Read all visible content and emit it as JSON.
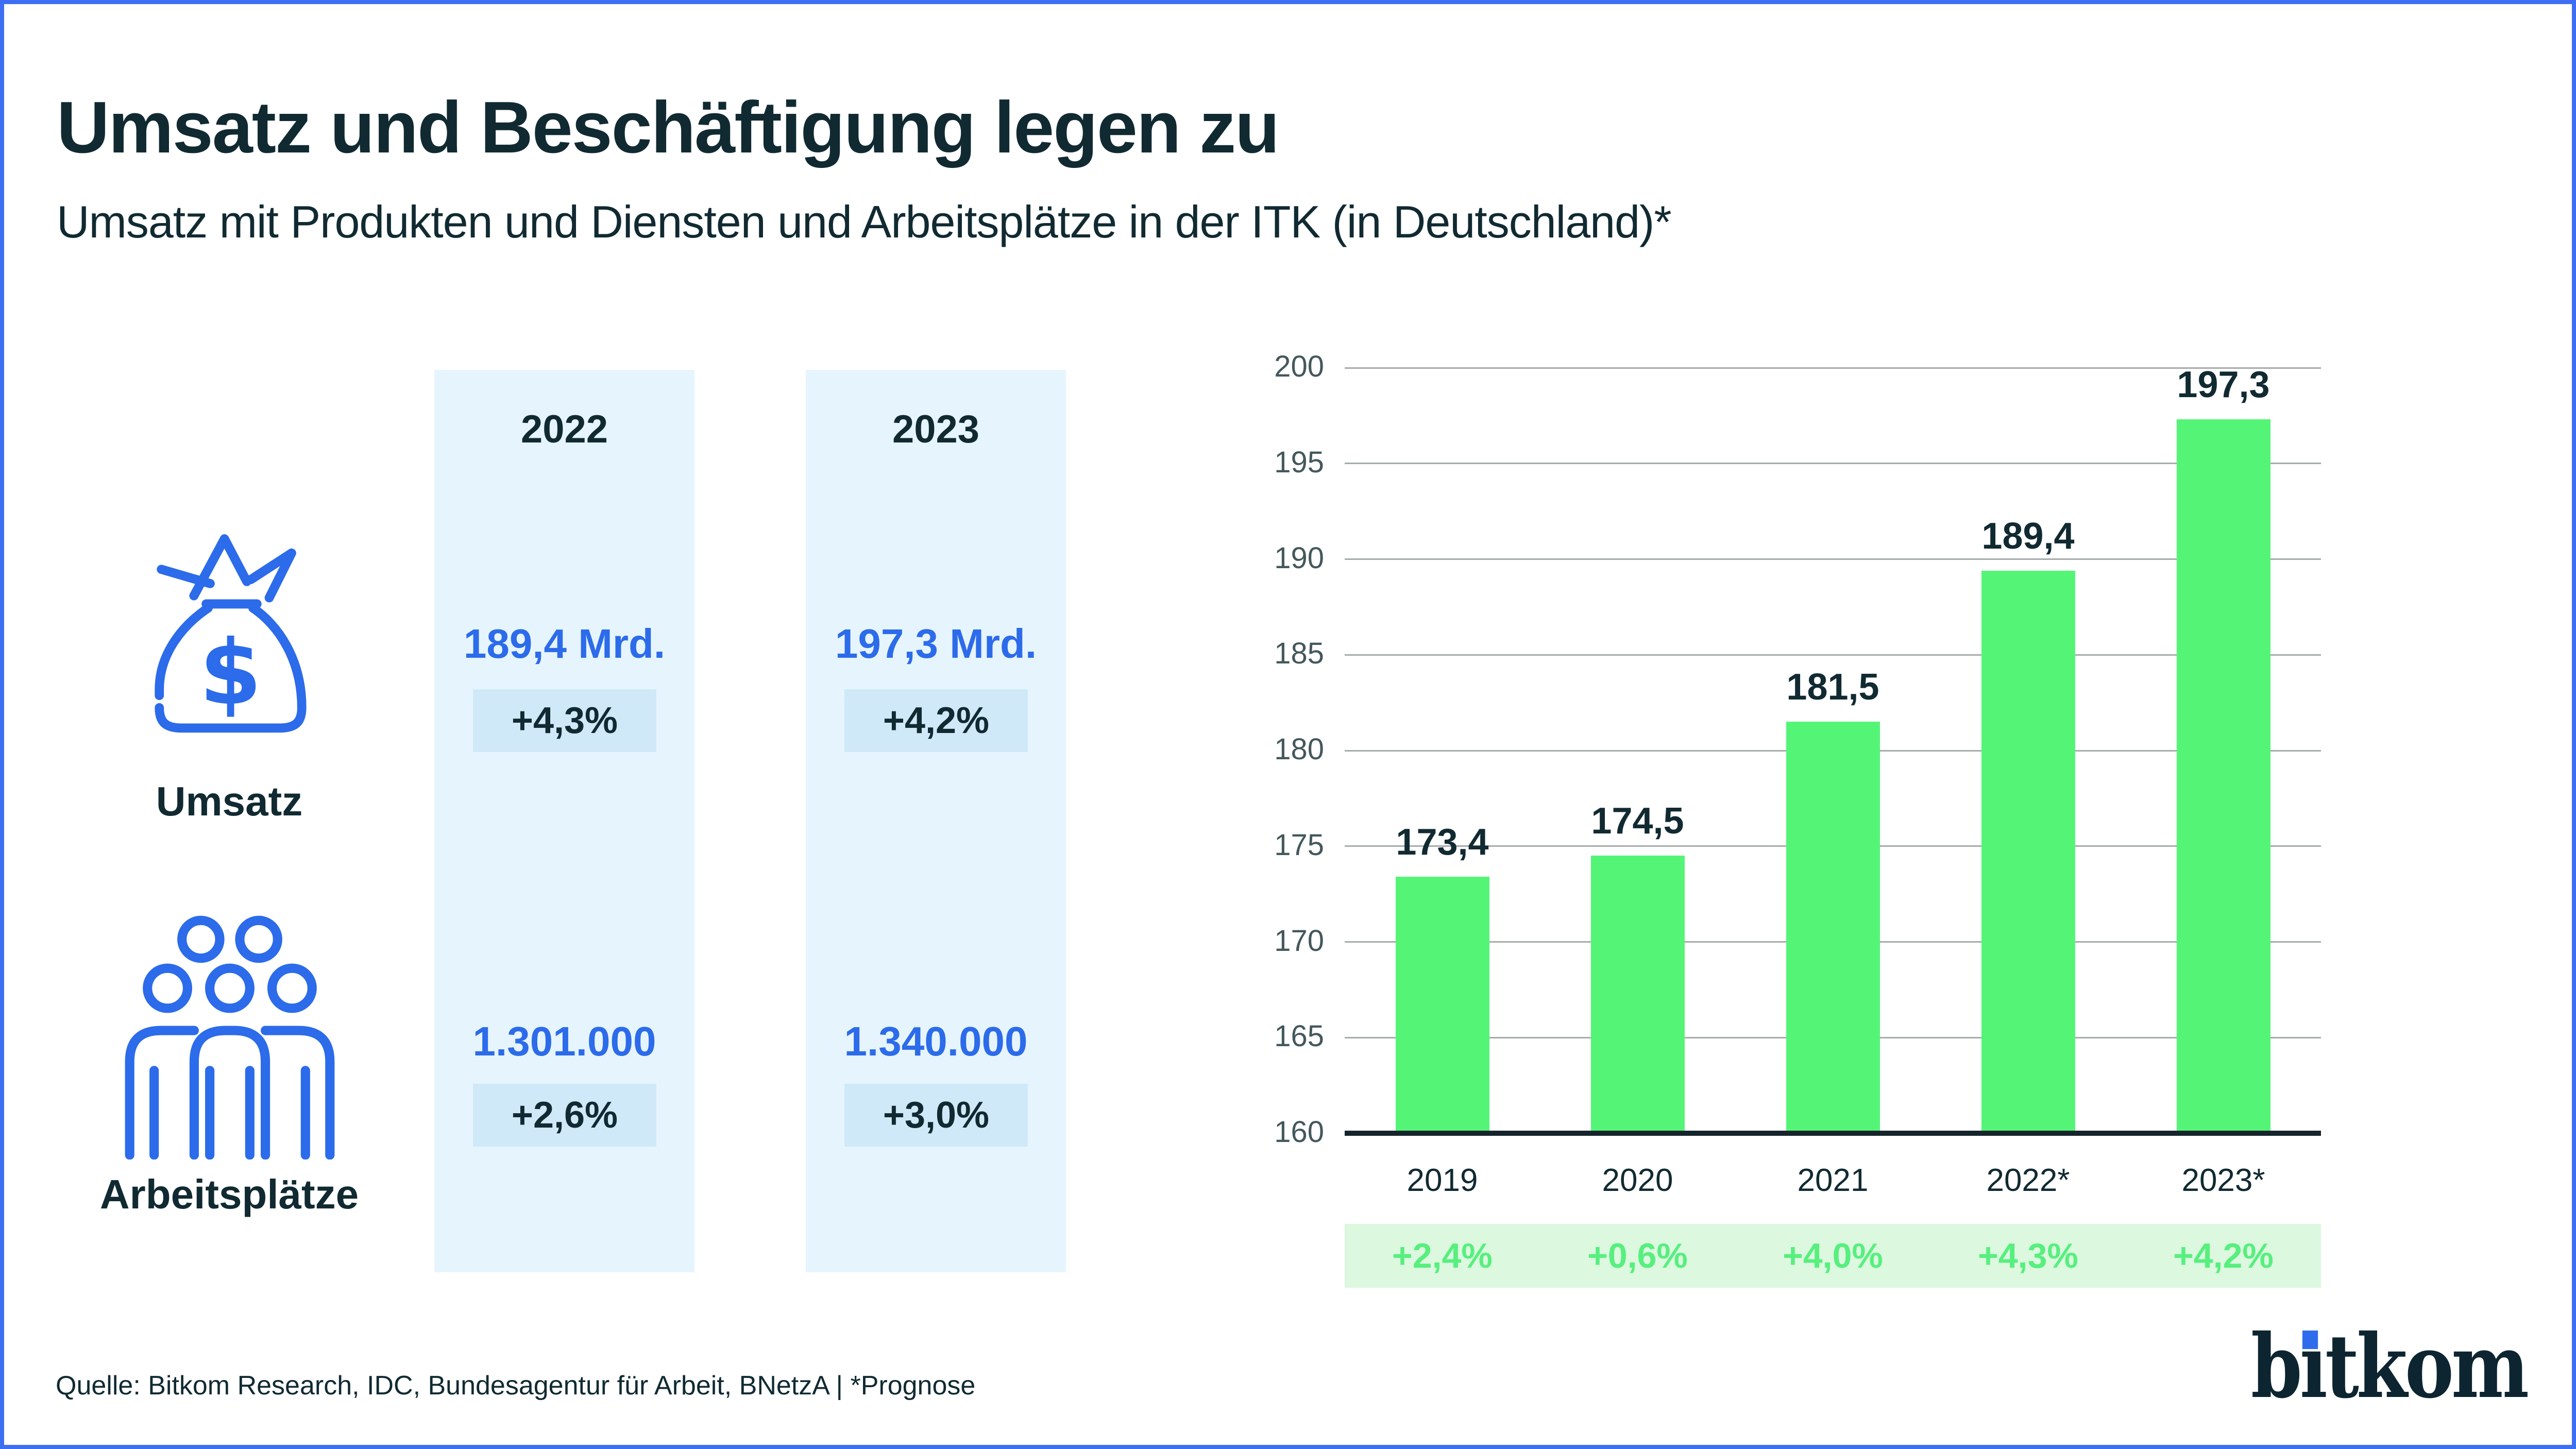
{
  "header": {
    "title": "Umsatz und Beschäftigung legen zu",
    "subtitle": "Umsatz mit Produkten und Diensten und Arbeitsplätze in der ITK (in Deutschland)*"
  },
  "comparison": {
    "columns": [
      {
        "year": "2022"
      },
      {
        "year": "2023"
      }
    ],
    "rows": [
      {
        "label": "Umsatz",
        "icon": "money-bag-icon",
        "values": [
          "189,4 Mrd.",
          "197,3 Mrd."
        ],
        "growth": [
          "+4,3%",
          "+4,2%"
        ]
      },
      {
        "label": "Arbeitsplätze",
        "icon": "people-icon",
        "values": [
          "1.301.000",
          "1.340.000"
        ],
        "growth": [
          "+2,6%",
          "+3,0%"
        ]
      }
    ]
  },
  "chart_data": {
    "type": "bar",
    "categories": [
      "2019",
      "2020",
      "2021",
      "2022*",
      "2023*"
    ],
    "values": [
      173.4,
      174.5,
      181.5,
      189.4,
      197.3
    ],
    "value_labels": [
      "173,4",
      "174,5",
      "181,5",
      "189,4",
      "197,3"
    ],
    "growth_labels": [
      "+2,4%",
      "+0,6%",
      "+4,0%",
      "+4,3%",
      "+4,2%"
    ],
    "ylim": [
      160,
      200
    ],
    "ytick_step": 5,
    "grid": true,
    "legend": "none"
  },
  "footer": {
    "source": "Quelle: Bitkom Research, IDC, Bundesagentur für Arbeit, BNetzA | *Prognose",
    "logo_text": "bitkom"
  },
  "colors": {
    "accent_blue": "#2c6bea",
    "dark_text": "#112a32",
    "bar_green": "#54f577",
    "growth_green": "#57ef7e",
    "band_green": "#dcf8df",
    "column_blue": "#e6f5fd",
    "badge_blue": "#d0e9f9",
    "border_blue": "#3e6ef2",
    "grid_gray": "#a6abab",
    "axis_dark": "#16242c"
  }
}
